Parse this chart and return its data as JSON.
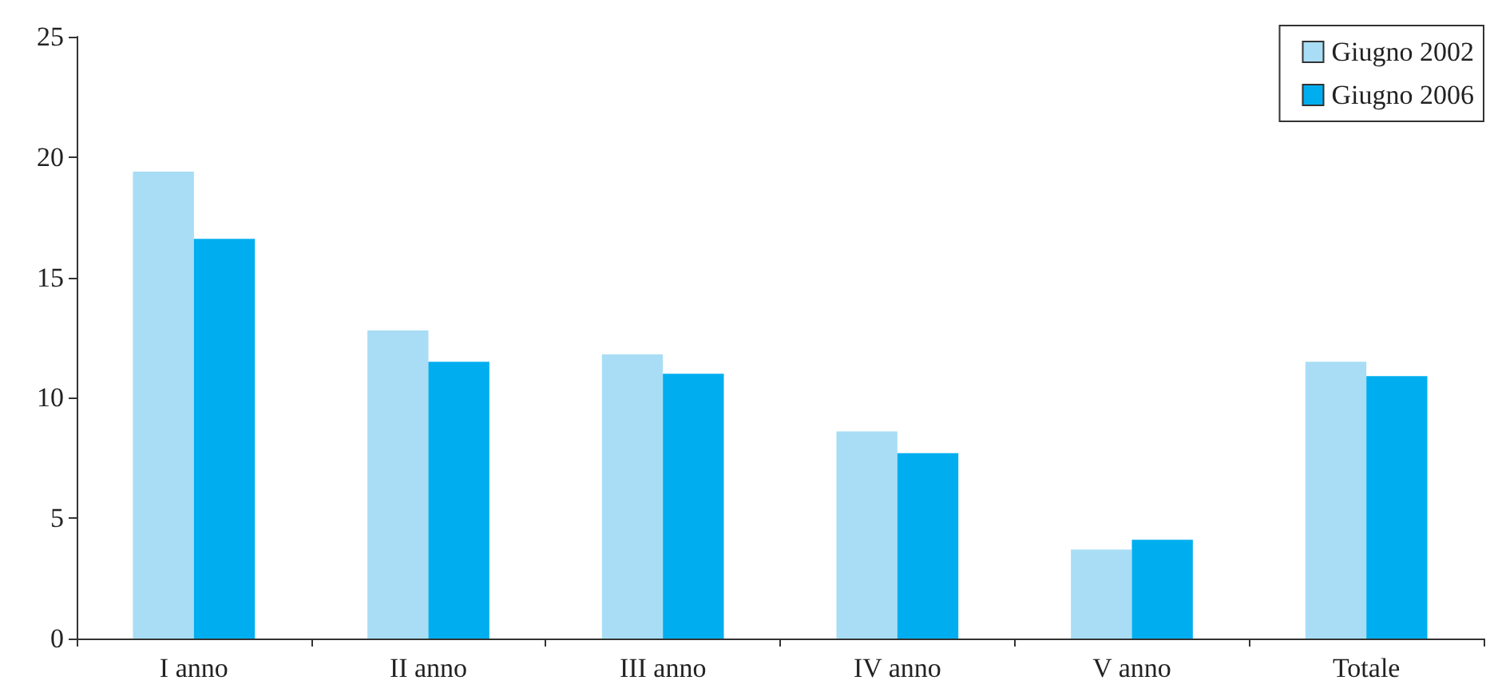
{
  "chart_data": {
    "type": "bar",
    "categories": [
      "I anno",
      "II anno",
      "III anno",
      "IV anno",
      "V anno",
      "Totale"
    ],
    "series": [
      {
        "name": "Giugno 2002",
        "color": "#a8ddf5",
        "values": [
          19.4,
          12.8,
          11.8,
          8.6,
          3.7,
          11.5
        ]
      },
      {
        "name": "Giugno 2006",
        "color": "#00aeef",
        "values": [
          16.6,
          11.5,
          11.0,
          7.7,
          4.1,
          10.9
        ]
      }
    ],
    "ylim": [
      0,
      25
    ],
    "yticks": [
      0,
      5,
      10,
      15,
      20,
      25
    ],
    "grid": false,
    "legend": "top right"
  }
}
